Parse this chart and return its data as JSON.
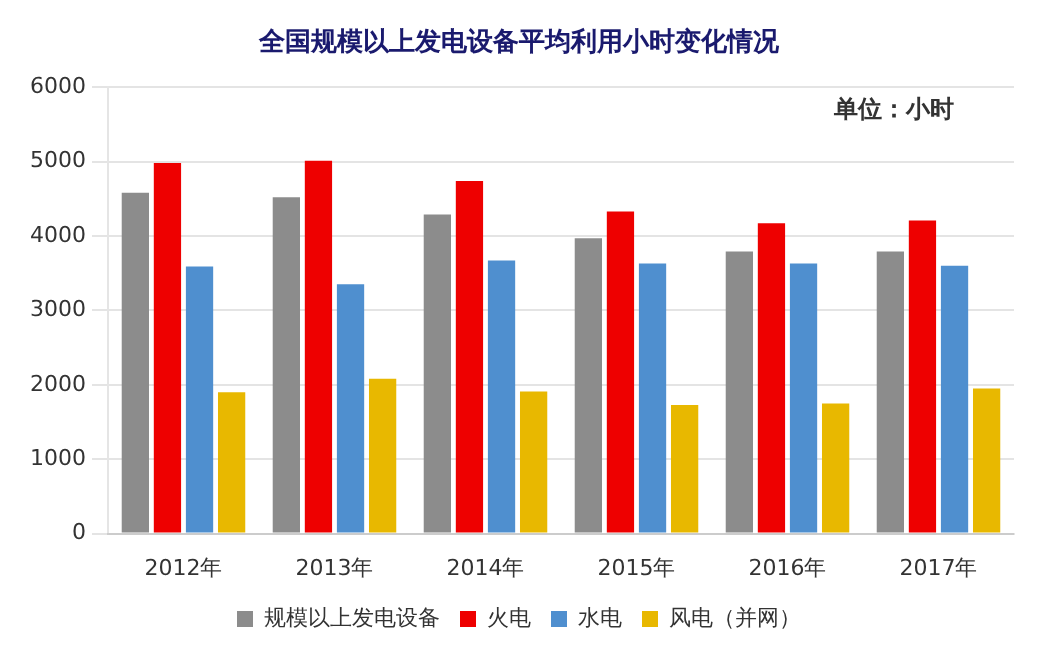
{
  "chart_data": {
    "type": "bar",
    "title": "全国规模以上发电设备平均利用小时变化情况",
    "annotations": [
      "单位：小时"
    ],
    "categories": [
      "2012年",
      "2013年",
      "2014年",
      "2015年",
      "2016年",
      "2017年"
    ],
    "series": [
      {
        "name": "规模以上发电设备",
        "color": "#8c8c8c",
        "values": [
          4580,
          4520,
          4290,
          3970,
          3790,
          3790
        ]
      },
      {
        "name": "火电",
        "color": "#ee0000",
        "values": [
          4980,
          5010,
          4740,
          4330,
          4170,
          4210
        ]
      },
      {
        "name": "水电",
        "color": "#4f8fcf",
        "values": [
          3590,
          3350,
          3670,
          3630,
          3630,
          3600
        ]
      },
      {
        "name": "风电（并网）",
        "color": "#e8b800",
        "values": [
          1900,
          2080,
          1910,
          1730,
          1750,
          1950
        ]
      }
    ],
    "ylim": [
      0,
      6000
    ],
    "yticks": [
      0,
      1000,
      2000,
      3000,
      4000,
      5000,
      6000
    ],
    "grid": "y",
    "legend": "bottom"
  }
}
